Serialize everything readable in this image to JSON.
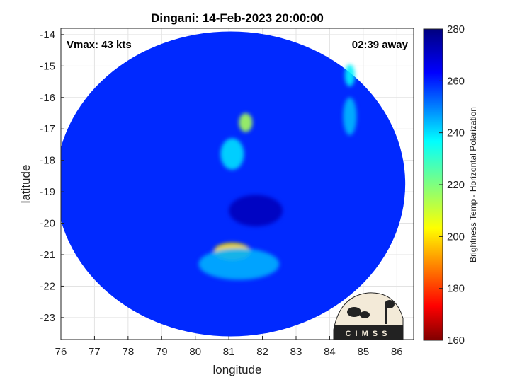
{
  "chart_data": {
    "type": "heatmap",
    "title": "Dingani: 14-Feb-2023 20:00:00",
    "annotations": {
      "vmax": "Vmax: 43 kts",
      "time_offset": "02:39 away"
    },
    "xlabel": "longitude",
    "ylabel": "latitude",
    "xlim": [
      76,
      86.5
    ],
    "ylim": [
      -23.7,
      -13.8
    ],
    "xticks": [
      76,
      77,
      78,
      79,
      80,
      81,
      82,
      83,
      84,
      85,
      86
    ],
    "yticks": [
      -14,
      -15,
      -16,
      -17,
      -18,
      -19,
      -20,
      -21,
      -22,
      -23
    ],
    "grid": true,
    "colorbar": {
      "label": "Brightness Temp - Horizontal Polarization",
      "range": [
        160,
        280
      ],
      "ticks": [
        160,
        180,
        200,
        220,
        240,
        260,
        280
      ]
    },
    "swath": {
      "center_lon": 81.05,
      "center_lat": -18.75,
      "radius_lon": 5.2,
      "radius_lat": 4.85,
      "background_value": 259
    },
    "features": [
      {
        "lon": 81.1,
        "lat": -20.9,
        "value": 200,
        "spread_lon": 0.55,
        "spread_lat": 0.28
      },
      {
        "lon": 81.5,
        "lat": -16.8,
        "value": 215,
        "spread_lon": 0.2,
        "spread_lat": 0.3
      },
      {
        "lon": 81.1,
        "lat": -17.8,
        "value": 240,
        "spread_lon": 0.35,
        "spread_lat": 0.5
      },
      {
        "lon": 84.6,
        "lat": -15.3,
        "value": 238,
        "spread_lon": 0.15,
        "spread_lat": 0.35
      },
      {
        "lon": 84.6,
        "lat": -16.6,
        "value": 244,
        "spread_lon": 0.2,
        "spread_lat": 0.6
      },
      {
        "lon": 81.8,
        "lat": -19.6,
        "value": 272,
        "spread_lon": 0.8,
        "spread_lat": 0.5
      },
      {
        "lon": 81.3,
        "lat": -21.3,
        "value": 245,
        "spread_lon": 1.2,
        "spread_lat": 0.5
      }
    ]
  },
  "logo": {
    "text": "CIMSS"
  }
}
